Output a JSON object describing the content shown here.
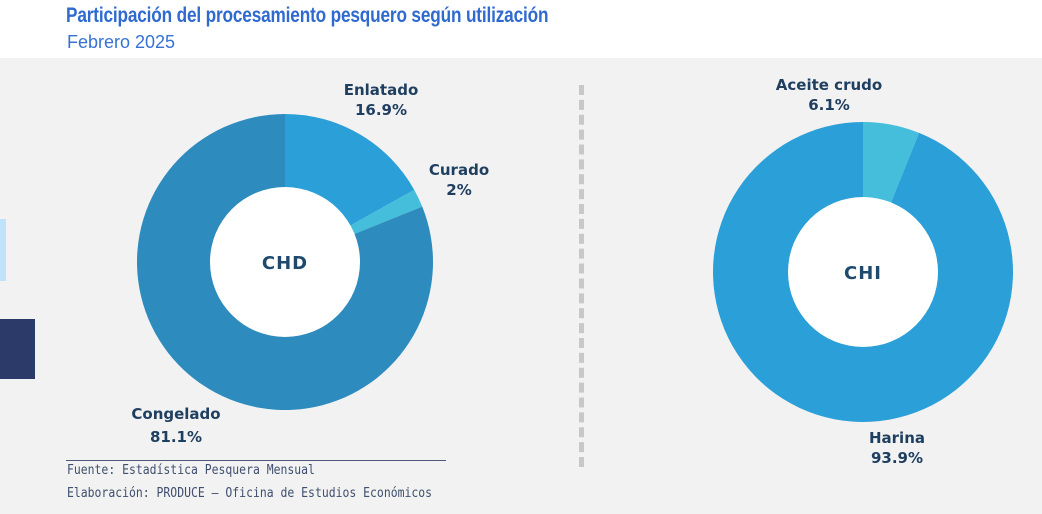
{
  "header": {
    "title": "Participación del procesamiento pesquero según utilización",
    "subtitle": "Febrero 2025"
  },
  "colors": {
    "title": "#2f6ad0",
    "panel_bg": "#f2f2f2",
    "label": "#1f3f60"
  },
  "chart_data": [
    {
      "type": "pie",
      "center_label": "CHD",
      "categories": [
        "Enlatado",
        "Curado",
        "Congelado"
      ],
      "values": [
        16.9,
        2,
        81.1
      ],
      "value_labels": [
        "16.9%",
        "2%",
        "81.1%"
      ],
      "colors": [
        "#2b9fd8",
        "#45bedb",
        "#2d8bbd"
      ],
      "donut": true
    },
    {
      "type": "pie",
      "center_label": "CHI",
      "categories": [
        "Aceite crudo",
        "Harina"
      ],
      "values": [
        6.1,
        93.9
      ],
      "value_labels": [
        "6.1%",
        "93.9%"
      ],
      "colors": [
        "#45bedb",
        "#2b9fd8"
      ],
      "donut": true
    }
  ],
  "footer": {
    "source": "Fuente: Estadística Pesquera Mensual",
    "elaboration": "Elaboración: PRODUCE – Oficina de Estudios Económicos"
  }
}
